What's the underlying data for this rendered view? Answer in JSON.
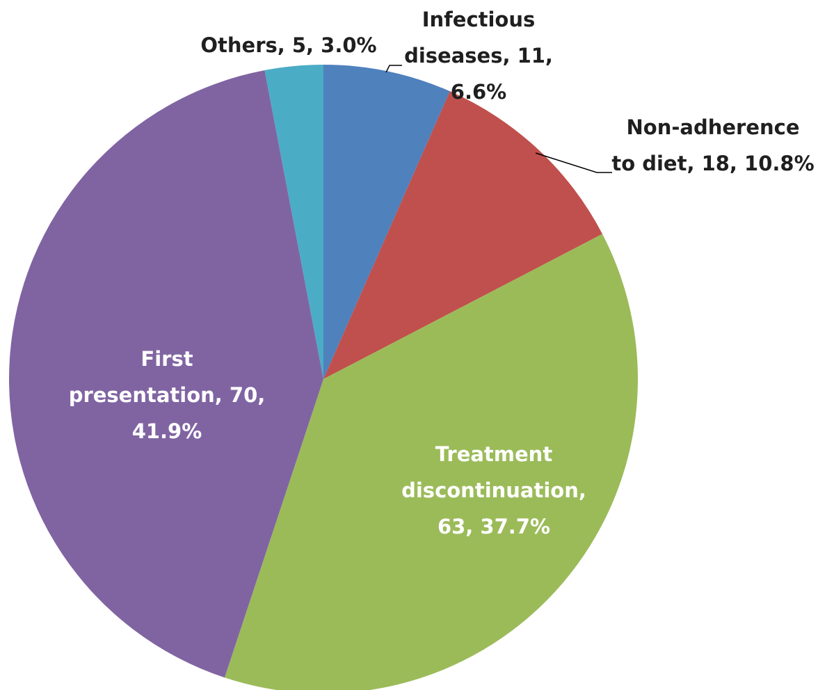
{
  "chart_data": {
    "type": "pie",
    "categories": [
      "Infectious diseases",
      "Non-adherence to diet",
      "Treatment discontinuation",
      "First presentation",
      "Others"
    ],
    "values": [
      11,
      18,
      63,
      70,
      5
    ],
    "value_labels": [
      [
        "Infectious",
        "diseases, 11,",
        "6.6%"
      ],
      [
        "Non-adherence",
        "to diet, 18, 10.8%"
      ],
      [
        "Treatment",
        "discontinuation,",
        "63, 37.7%"
      ],
      [
        "First",
        "presentation, 70,",
        "41.9%"
      ],
      [
        "Others, 5, 3.0%"
      ]
    ],
    "colors": [
      "#4f81bd",
      "#c0504d",
      "#9bbb59",
      "#8064a2",
      "#4bacc6"
    ]
  }
}
